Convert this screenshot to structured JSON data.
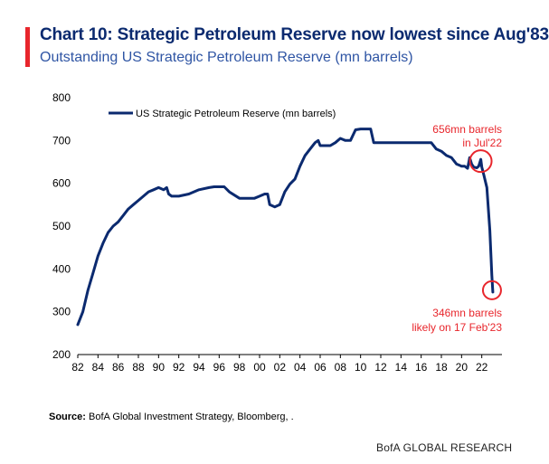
{
  "header": {
    "title": "Chart 10: Strategic Petroleum Reserve now lowest since Aug'83",
    "subtitle": "Outstanding US Strategic Petroleum Reserve (mn barrels)"
  },
  "footer": {
    "source_label": "Source:",
    "source_text": "BofA Global Investment Strategy, Bloomberg, .",
    "brand": "BofA GLOBAL RESEARCH"
  },
  "colors": {
    "series": "#0b2a6f",
    "annotation": "#e8262c",
    "title": "#0b2a6f",
    "subtitle": "#2f55a4"
  },
  "chart_data": {
    "type": "line",
    "xlim": [
      1982,
      2024
    ],
    "ylim": [
      200,
      800
    ],
    "yticks": [
      200,
      300,
      400,
      500,
      600,
      700,
      800
    ],
    "xticks": [
      "82",
      "84",
      "86",
      "88",
      "90",
      "92",
      "94",
      "96",
      "98",
      "00",
      "02",
      "04",
      "06",
      "08",
      "10",
      "12",
      "14",
      "16",
      "18",
      "20",
      "22"
    ],
    "legend": {
      "label": "US Strategic Petroleum Reserve (mn barrels)",
      "placement": "top-left"
    },
    "grid": false,
    "series": [
      {
        "name": "US Strategic Petroleum Reserve (mn barrels)",
        "x": [
          1982.0,
          1982.5,
          1983.0,
          1983.5,
          1984.0,
          1984.5,
          1985.0,
          1985.5,
          1986.0,
          1986.5,
          1987.0,
          1987.5,
          1988.0,
          1988.5,
          1989.0,
          1989.5,
          1990.0,
          1990.5,
          1990.8,
          1991.0,
          1991.3,
          1992.0,
          1993.0,
          1994.0,
          1995.0,
          1995.5,
          1996.0,
          1996.5,
          1997.0,
          1998.0,
          1999.0,
          1999.5,
          2000.0,
          2000.5,
          2000.8,
          2001.0,
          2001.5,
          2002.0,
          2002.5,
          2003.0,
          2003.5,
          2004.0,
          2004.5,
          2005.0,
          2005.5,
          2005.8,
          2006.0,
          2007.0,
          2007.5,
          2008.0,
          2008.5,
          2009.0,
          2009.5,
          2010.0,
          2011.0,
          2011.3,
          2011.5,
          2012.0,
          2013.0,
          2014.0,
          2015.0,
          2016.0,
          2017.0,
          2017.5,
          2018.0,
          2018.5,
          2019.0,
          2019.5,
          2020.0,
          2020.3,
          2020.6,
          2020.8,
          2021.0,
          2021.2,
          2021.5,
          2021.7,
          2021.9,
          2022.0,
          2022.2,
          2022.5,
          2022.8,
          2023.0,
          2023.1
        ],
        "y": [
          270,
          300,
          350,
          390,
          430,
          460,
          485,
          500,
          510,
          525,
          540,
          550,
          560,
          570,
          580,
          585,
          590,
          585,
          590,
          575,
          570,
          570,
          575,
          585,
          590,
          592,
          592,
          592,
          580,
          565,
          565,
          565,
          570,
          575,
          575,
          550,
          545,
          550,
          580,
          598,
          610,
          640,
          665,
          680,
          695,
          700,
          688,
          688,
          695,
          705,
          700,
          700,
          725,
          727,
          727,
          695,
          695,
          695,
          695,
          695,
          695,
          695,
          695,
          680,
          675,
          665,
          660,
          645,
          640,
          640,
          635,
          660,
          645,
          638,
          636,
          640,
          656,
          638,
          620,
          590,
          490,
          385,
          346
        ]
      }
    ],
    "annotations": [
      {
        "text_line1": "656mn barrels",
        "text_line2": "in Jul'22",
        "x": 2021.9,
        "y": 656
      },
      {
        "text_line1": "346mn barrels",
        "text_line2": "likely on 17 Feb'23",
        "x": 2023.1,
        "y": 346
      }
    ]
  }
}
